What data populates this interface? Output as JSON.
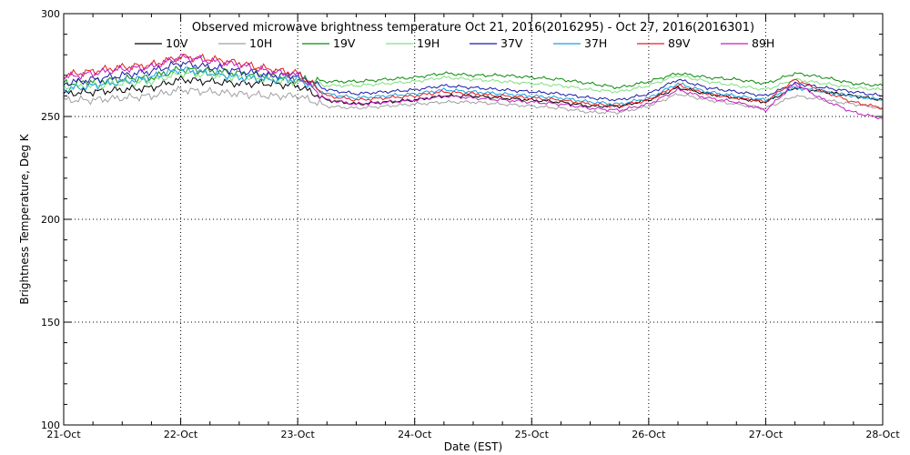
{
  "chart_data": {
    "type": "line",
    "title": "Observed microwave brightness temperature Oct 21, 2016(2016295) - Oct 27, 2016(2016301)",
    "xlabel": "Date (EST)",
    "ylabel": "Brightness Temperature, Deg K",
    "ylim": [
      100,
      300
    ],
    "xlim": [
      0,
      7
    ],
    "x_tick_values": [
      0,
      1,
      2,
      3,
      4,
      5,
      6,
      7
    ],
    "x_tick_labels": [
      "21-Oct",
      "22-Oct",
      "23-Oct",
      "24-Oct",
      "25-Oct",
      "26-Oct",
      "27-Oct",
      "28-Oct"
    ],
    "y_tick_values": [
      100,
      150,
      200,
      250,
      300
    ],
    "y_tick_labels": [
      "100",
      "150",
      "200",
      "250",
      "300"
    ],
    "grid": true,
    "legend_position": "top",
    "x": [
      0.0,
      0.25,
      0.5,
      0.75,
      1.0,
      1.25,
      1.5,
      1.75,
      2.0,
      2.25,
      2.5,
      2.75,
      3.0,
      3.25,
      3.5,
      3.75,
      4.0,
      4.25,
      4.5,
      4.75,
      5.0,
      5.25,
      5.5,
      5.75,
      6.0,
      6.25,
      6.5,
      6.75,
      7.0
    ],
    "series": [
      {
        "name": "10V",
        "color": "#000000",
        "values": [
          261,
          262,
          263,
          264,
          268,
          267,
          266,
          266,
          265,
          258,
          256,
          257,
          258,
          260,
          260,
          259,
          258,
          257,
          255,
          255,
          258,
          264,
          261,
          259,
          257,
          264,
          262,
          260,
          258
        ]
      },
      {
        "name": "10H",
        "color": "#a0a0a0",
        "values": [
          258,
          258,
          259,
          260,
          263,
          262,
          261,
          260,
          260,
          255,
          254,
          255,
          256,
          257,
          257,
          256,
          255,
          254,
          252,
          252,
          255,
          261,
          258,
          256,
          254,
          260,
          258,
          256,
          254
        ]
      },
      {
        "name": "19V",
        "color": "#0a8a0a",
        "values": [
          266,
          267,
          268,
          269,
          273,
          272,
          271,
          270,
          268,
          267,
          267,
          268,
          269,
          271,
          270,
          270,
          269,
          268,
          266,
          264,
          267,
          271,
          269,
          268,
          266,
          271,
          269,
          266,
          265
        ]
      },
      {
        "name": "19H",
        "color": "#80e080",
        "values": [
          264,
          265,
          266,
          267,
          271,
          270,
          269,
          268,
          267,
          265,
          265,
          266,
          267,
          269,
          268,
          267,
          266,
          265,
          263,
          262,
          265,
          270,
          267,
          265,
          263,
          268,
          266,
          264,
          263
        ]
      },
      {
        "name": "37V",
        "color": "#1a1aaa",
        "values": [
          266,
          268,
          270,
          272,
          276,
          274,
          272,
          270,
          270,
          263,
          261,
          262,
          263,
          265,
          264,
          263,
          262,
          261,
          259,
          258,
          261,
          268,
          264,
          262,
          260,
          266,
          264,
          262,
          260
        ]
      },
      {
        "name": "37H",
        "color": "#1aa0e0",
        "values": [
          263,
          265,
          267,
          269,
          273,
          271,
          269,
          268,
          268,
          261,
          259,
          260,
          261,
          263,
          262,
          261,
          260,
          259,
          257,
          256,
          259,
          266,
          262,
          260,
          258,
          264,
          262,
          260,
          258
        ]
      },
      {
        "name": "89V",
        "color": "#e02020",
        "values": [
          270,
          272,
          274,
          275,
          279,
          278,
          276,
          273,
          271,
          260,
          258,
          259,
          260,
          262,
          261,
          260,
          259,
          258,
          256,
          255,
          258,
          265,
          261,
          259,
          257,
          268,
          262,
          257,
          254
        ]
      },
      {
        "name": "89H",
        "color": "#c020c0",
        "values": [
          269,
          271,
          273,
          274,
          279,
          277,
          275,
          272,
          270,
          258,
          256,
          257,
          258,
          260,
          259,
          258,
          257,
          256,
          254,
          253,
          256,
          263,
          259,
          257,
          253,
          266,
          258,
          252,
          249
        ]
      }
    ]
  }
}
